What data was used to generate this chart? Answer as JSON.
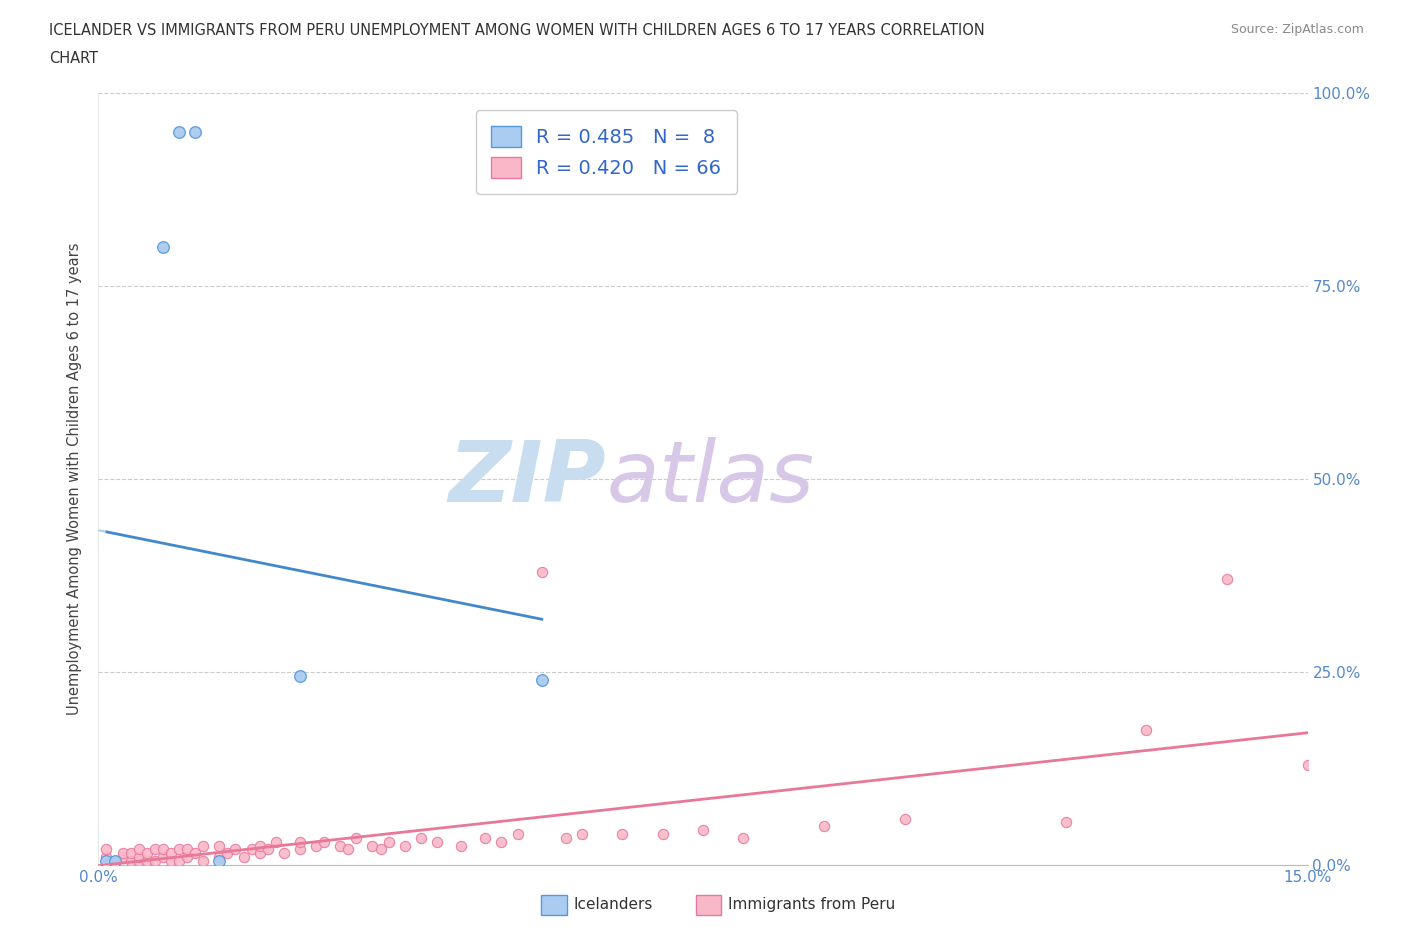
{
  "title_line1": "ICELANDER VS IMMIGRANTS FROM PERU UNEMPLOYMENT AMONG WOMEN WITH CHILDREN AGES 6 TO 17 YEARS CORRELATION",
  "title_line2": "CHART",
  "source": "Source: ZipAtlas.com",
  "ylabel_label": "Unemployment Among Women with Children Ages 6 to 17 years",
  "r_icelander": 0.485,
  "n_icelander": 8,
  "r_peru": 0.42,
  "n_peru": 66,
  "color_icelander_fill": "#aaccf0",
  "color_icelander_edge": "#5599dd",
  "color_peru_fill": "#f9b8c8",
  "color_peru_edge": "#e878a0",
  "color_trendline_icelander": "#4488cc",
  "color_trendline_icelander_dashed": "#aaccee",
  "color_trendline_peru": "#e87898",
  "color_watermark_zip": "#c8ddf0",
  "color_watermark_atlas": "#d8c8e8",
  "icelander_x": [
    0.001,
    0.002,
    0.008,
    0.01,
    0.012,
    0.015,
    0.025,
    0.055
  ],
  "icelander_y": [
    0.005,
    0.005,
    0.8,
    0.95,
    0.95,
    0.005,
    0.245,
    0.24
  ],
  "peru_x": [
    0.001,
    0.001,
    0.002,
    0.003,
    0.003,
    0.004,
    0.004,
    0.005,
    0.005,
    0.005,
    0.006,
    0.006,
    0.007,
    0.007,
    0.008,
    0.008,
    0.009,
    0.009,
    0.01,
    0.01,
    0.011,
    0.011,
    0.012,
    0.013,
    0.013,
    0.015,
    0.015,
    0.016,
    0.017,
    0.018,
    0.019,
    0.02,
    0.02,
    0.021,
    0.022,
    0.023,
    0.025,
    0.025,
    0.027,
    0.028,
    0.03,
    0.031,
    0.032,
    0.034,
    0.035,
    0.036,
    0.038,
    0.04,
    0.042,
    0.045,
    0.048,
    0.05,
    0.052,
    0.055,
    0.058,
    0.06,
    0.065,
    0.07,
    0.075,
    0.08,
    0.09,
    0.1,
    0.12,
    0.13,
    0.14,
    0.15
  ],
  "peru_y": [
    0.01,
    0.02,
    0.005,
    0.01,
    0.015,
    0.005,
    0.015,
    0.005,
    0.01,
    0.02,
    0.005,
    0.015,
    0.005,
    0.02,
    0.01,
    0.02,
    0.005,
    0.015,
    0.005,
    0.02,
    0.01,
    0.02,
    0.015,
    0.005,
    0.025,
    0.01,
    0.025,
    0.015,
    0.02,
    0.01,
    0.02,
    0.015,
    0.025,
    0.02,
    0.03,
    0.015,
    0.02,
    0.03,
    0.025,
    0.03,
    0.025,
    0.02,
    0.035,
    0.025,
    0.02,
    0.03,
    0.025,
    0.035,
    0.03,
    0.025,
    0.035,
    0.03,
    0.04,
    0.38,
    0.035,
    0.04,
    0.04,
    0.04,
    0.045,
    0.035,
    0.05,
    0.06,
    0.055,
    0.175,
    0.37,
    0.13
  ],
  "xmin": 0.0,
  "xmax": 0.15,
  "ymin": 0.0,
  "ymax": 1.0,
  "yticks": [
    0.0,
    0.25,
    0.5,
    0.75,
    1.0
  ],
  "ytick_labels": [
    "0.0%",
    "25.0%",
    "50.0%",
    "75.0%",
    "100.0%"
  ],
  "xtick_labels_show": [
    "0.0%",
    "15.0%"
  ]
}
